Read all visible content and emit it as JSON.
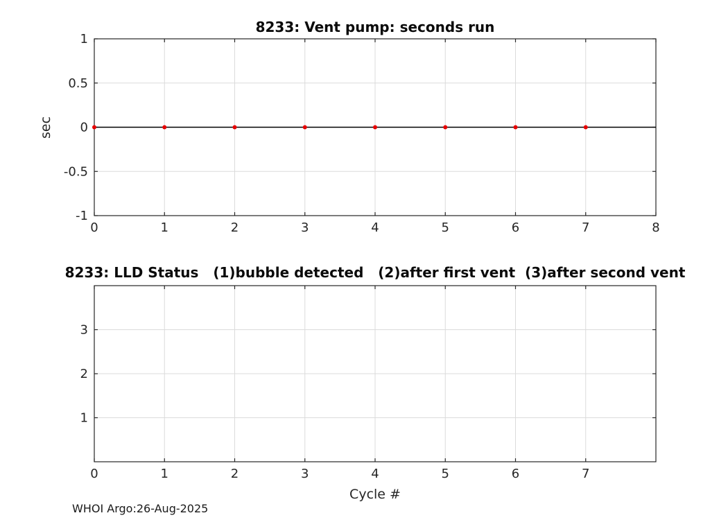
{
  "figure": {
    "footer": "WHOI Argo:26-Aug-2025"
  },
  "colors": {
    "marker": "#e60000",
    "line": "#000000",
    "grid": "#dbdbdb",
    "axis": "#262626",
    "text": "#262626"
  },
  "chart_data": [
    {
      "type": "scatter",
      "title": "8233: Vent pump: seconds run",
      "xlabel": "",
      "ylabel": "sec",
      "x": [
        0,
        1,
        2,
        3,
        4,
        5,
        6,
        7
      ],
      "y": [
        0,
        0,
        0,
        0,
        0,
        0,
        0,
        0
      ],
      "xlim": [
        0,
        8
      ],
      "ylim": [
        -1,
        1
      ],
      "xticks": [
        0,
        1,
        2,
        3,
        4,
        5,
        6,
        7,
        8
      ],
      "xtick_labels": [
        "0",
        "1",
        "2",
        "3",
        "4",
        "5",
        "6",
        "7",
        "8"
      ],
      "yticks": [
        -1,
        -0.5,
        0,
        0.5,
        1
      ],
      "ytick_labels": [
        "-1",
        "-0.5",
        "0",
        "0.5",
        "1"
      ],
      "grid": true,
      "zero_line": true,
      "legend_position": "none"
    },
    {
      "type": "scatter",
      "title": "8233: LLD Status   (1)bubble detected   (2)after first vent  (3)after second vent",
      "xlabel": "Cycle #",
      "ylabel": "",
      "x": [],
      "y": [],
      "xlim": [
        0,
        8
      ],
      "ylim": [
        0,
        4
      ],
      "xticks": [
        0,
        1,
        2,
        3,
        4,
        5,
        6,
        7
      ],
      "xtick_labels": [
        "0",
        "1",
        "2",
        "3",
        "4",
        "5",
        "6",
        "7"
      ],
      "yticks": [
        1,
        2,
        3
      ],
      "ytick_labels": [
        "1",
        "2",
        "3"
      ],
      "grid": true,
      "zero_line": false,
      "legend_position": "none"
    }
  ]
}
